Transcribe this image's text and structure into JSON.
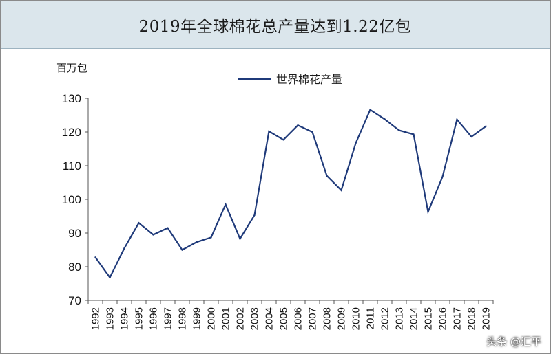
{
  "chart_data": {
    "type": "line",
    "title": "2019年全球棉花总产量达到1.22亿包",
    "ylabel": "百万包",
    "xlabel": "",
    "ylim": [
      70,
      130
    ],
    "yticks": [
      70,
      80,
      90,
      100,
      110,
      120,
      130
    ],
    "grid": false,
    "legend_position": "top",
    "categories": [
      "1992",
      "1993",
      "1994",
      "1995",
      "1996",
      "1997",
      "1998",
      "1999",
      "2000",
      "2001",
      "2002",
      "2003",
      "2004",
      "2005",
      "2006",
      "2007",
      "2008",
      "2009",
      "2010",
      "2011",
      "2012",
      "2013",
      "2014",
      "2015",
      "2016",
      "2017",
      "2018",
      "2019"
    ],
    "series": [
      {
        "name": "世界棉花产量",
        "color": "#1f3a7a",
        "values": [
          82.8,
          76.8,
          85.5,
          93.0,
          89.5,
          91.5,
          85.0,
          87.3,
          88.7,
          98.5,
          88.3,
          95.3,
          120.2,
          117.7,
          122.0,
          120.0,
          107.0,
          102.7,
          116.7,
          126.6,
          123.8,
          120.5,
          119.3,
          96.3,
          106.7,
          123.7,
          118.6,
          121.7
        ]
      }
    ]
  },
  "watermark": "头条 @汇平"
}
